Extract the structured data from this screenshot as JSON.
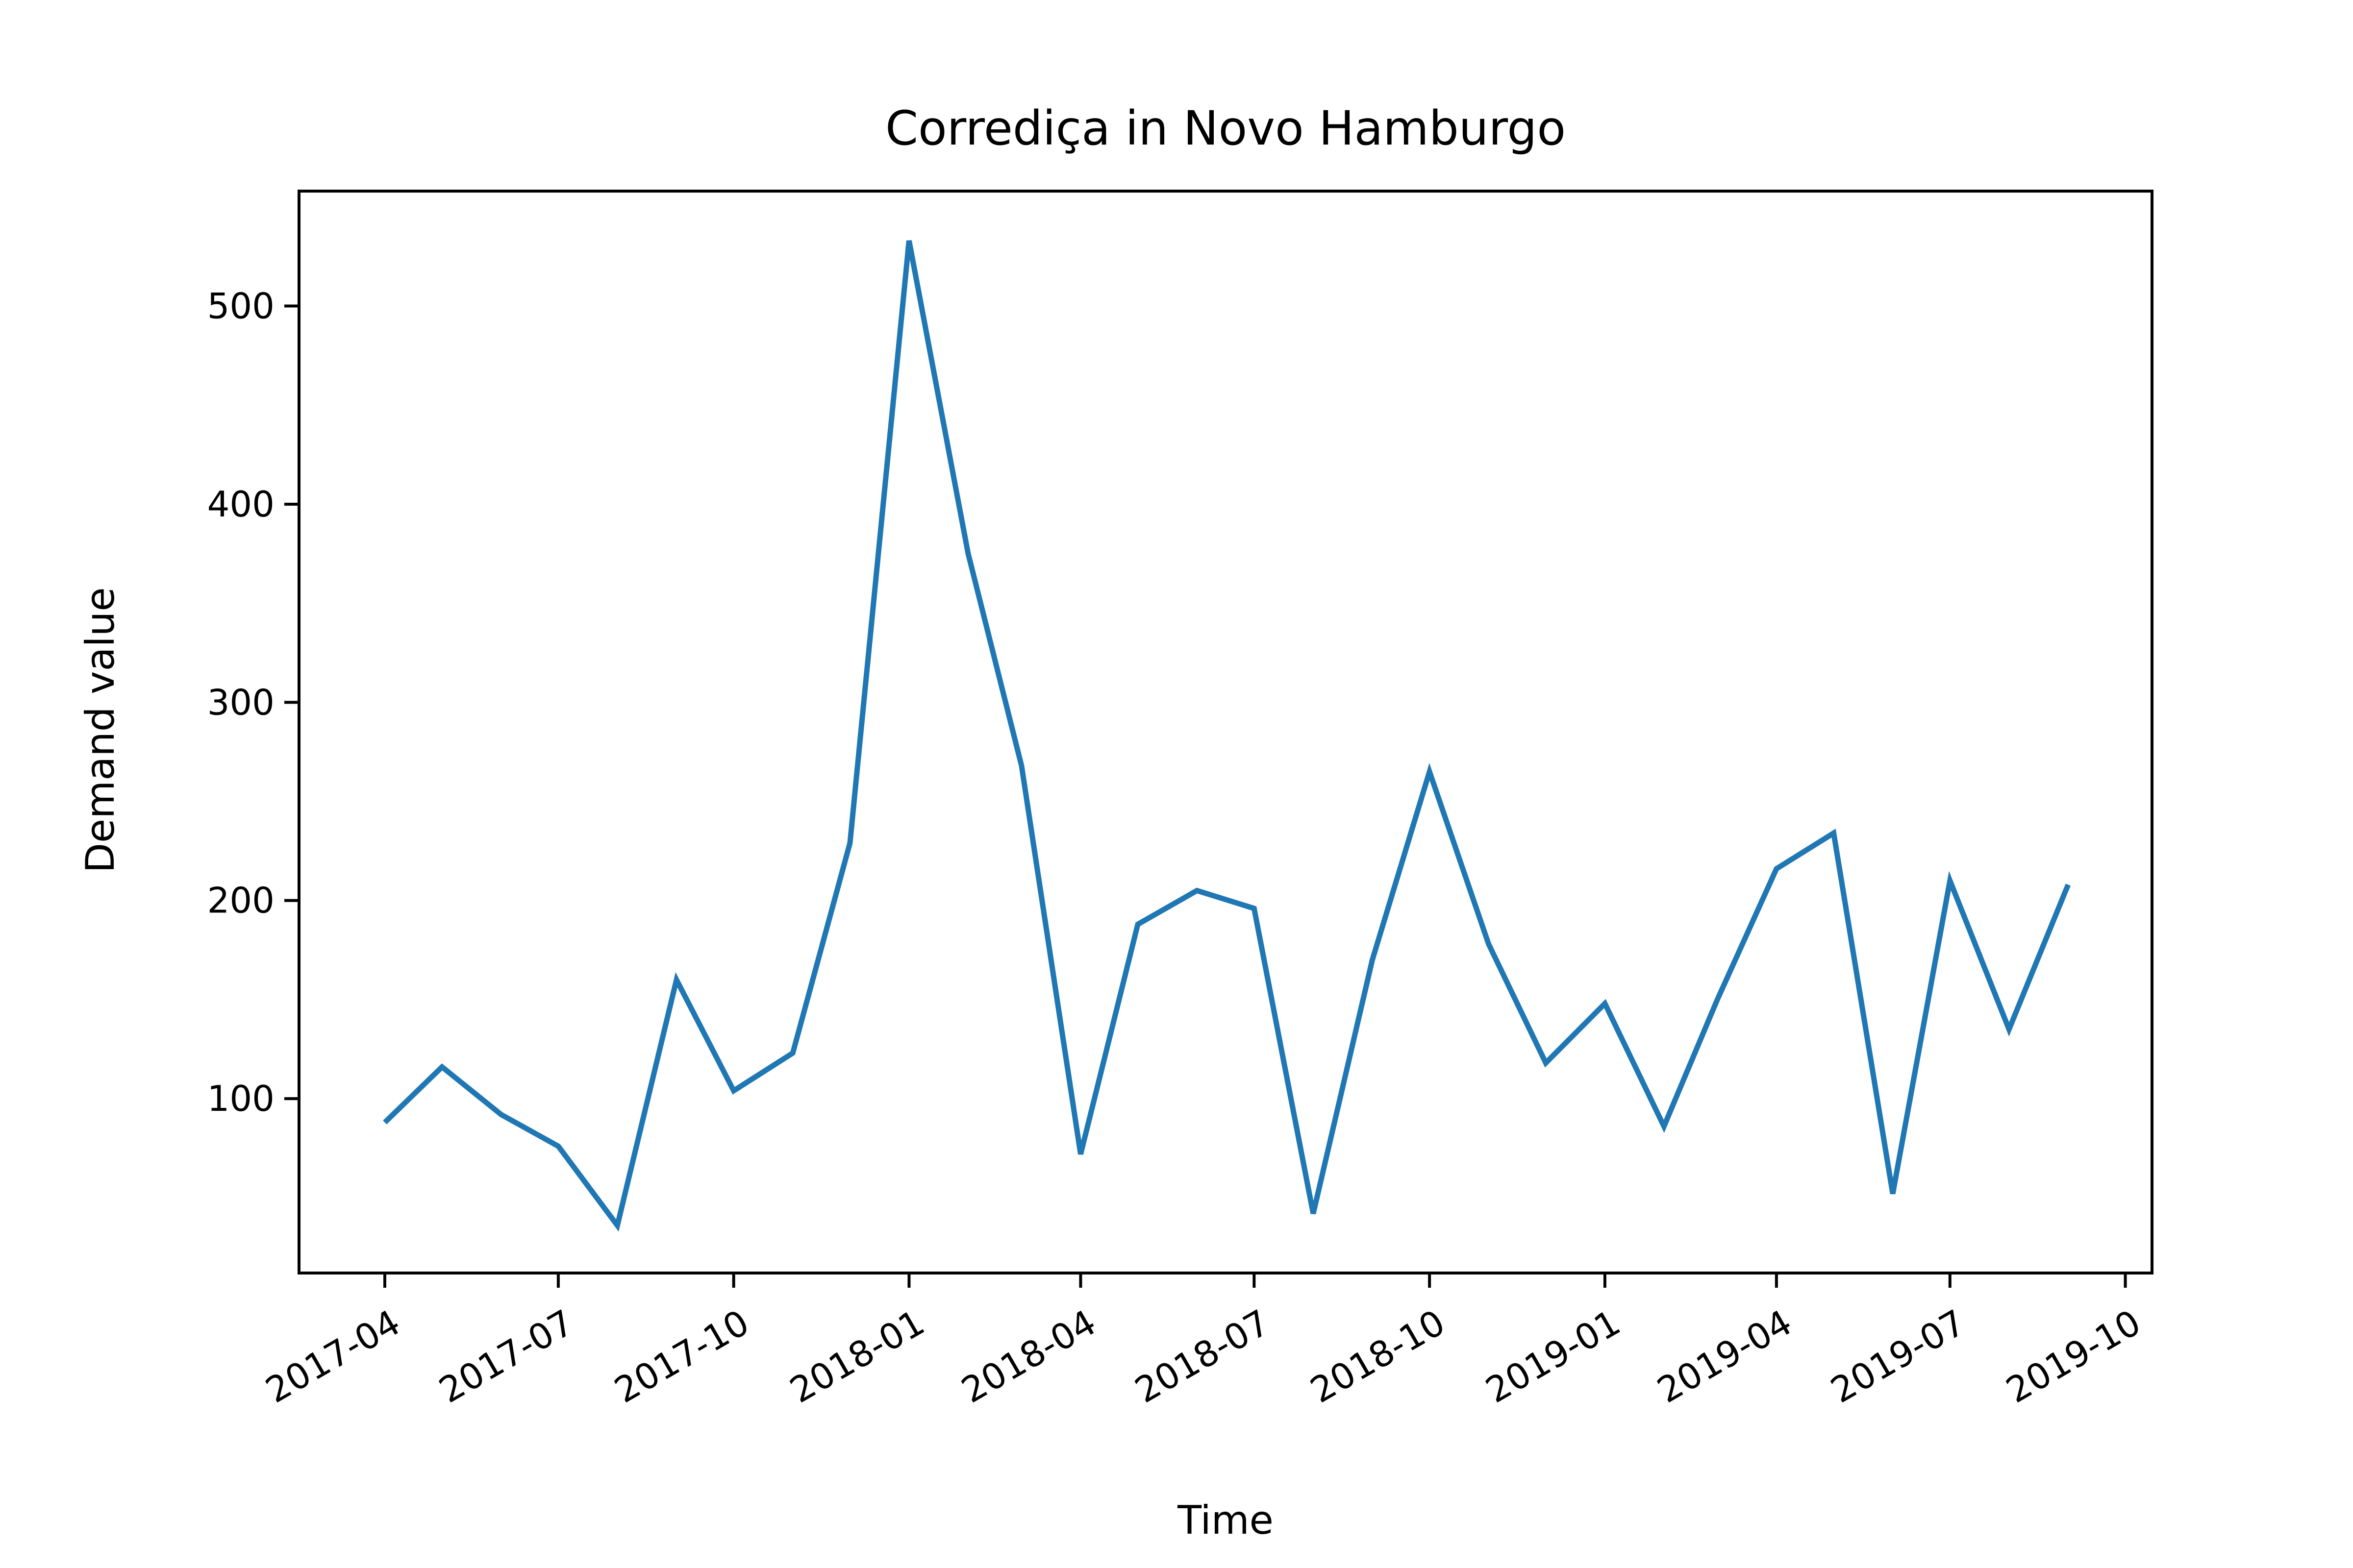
{
  "chart_data": {
    "type": "line",
    "title": "Corrediça in Novo Hamburgo",
    "xlabel": "Time",
    "ylabel": "Demand value",
    "x_ticks": [
      "2017-04",
      "2017-07",
      "2017-10",
      "2018-01",
      "2018-04",
      "2018-07",
      "2018-10",
      "2019-01",
      "2019-04",
      "2019-07",
      "2019-10"
    ],
    "y_ticks": [
      100,
      200,
      300,
      400,
      500
    ],
    "xlim": [
      "2017-02-15",
      "2019-10-15"
    ],
    "ylim": [
      12,
      558
    ],
    "grid": false,
    "legend": "none",
    "line_color": "#1f77b4",
    "series": [
      {
        "x": [
          "2017-04-01",
          "2017-05-01",
          "2017-06-01",
          "2017-07-01",
          "2017-08-01",
          "2017-09-01",
          "2017-10-01",
          "2017-11-01",
          "2017-12-01",
          "2018-01-01",
          "2018-02-01",
          "2018-03-01",
          "2018-04-01",
          "2018-05-01",
          "2018-06-01",
          "2018-07-01",
          "2018-08-01",
          "2018-09-01",
          "2018-10-01",
          "2018-11-01",
          "2018-12-01",
          "2019-01-01",
          "2019-02-01",
          "2019-03-01",
          "2019-04-01",
          "2019-05-01",
          "2019-06-01",
          "2019-07-01",
          "2019-08-01",
          "2019-09-01"
        ],
        "values": [
          88,
          116,
          92,
          76,
          36,
          160,
          104,
          123,
          229,
          533,
          375,
          268,
          72,
          188,
          205,
          196,
          42,
          170,
          265,
          178,
          118,
          148,
          86,
          150,
          216,
          234,
          52,
          210,
          135,
          208
        ]
      }
    ]
  }
}
